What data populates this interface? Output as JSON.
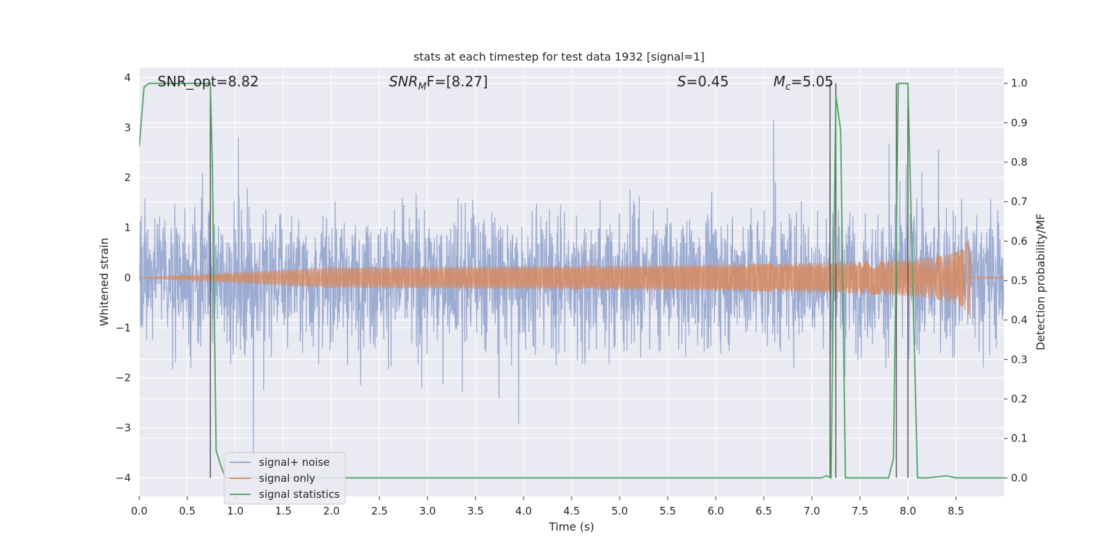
{
  "chart_data": {
    "type": "line",
    "title": "stats at each timestep for test data 1932 [signal=1]",
    "xlabel": "Time (s)",
    "ylabel_left": "Whitened strain",
    "ylabel_right": "Detection probability/MF",
    "xlim": [
      0,
      9.0
    ],
    "ylim_left": [
      -4.37,
      4.2
    ],
    "ylim_right": [
      -0.047,
      1.04
    ],
    "x_ticks": [
      "0.0",
      "0.5",
      "1.0",
      "1.5",
      "2.0",
      "2.5",
      "3.0",
      "3.5",
      "4.0",
      "4.5",
      "5.0",
      "5.5",
      "6.0",
      "6.5",
      "7.0",
      "7.5",
      "8.0",
      "8.5"
    ],
    "y_left_ticks": [
      "4",
      "3",
      "2",
      "1",
      "0",
      "−1",
      "−2",
      "−3",
      "−4"
    ],
    "y_right_ticks": [
      "1.0",
      "0.9",
      "0.8",
      "0.7",
      "0.6",
      "0.5",
      "0.4",
      "0.3",
      "0.2",
      "0.1",
      "0.0"
    ],
    "grid": true,
    "legend_position": "bottom-left",
    "annotations": [
      {
        "text": "SNR_opt=8.82",
        "x": 0.19
      },
      {
        "text": "SNR",
        "sub": "M",
        "after": "F=[8.27]",
        "italic": true,
        "x": 2.6
      },
      {
        "text": "S",
        "after": "=0.45",
        "italic": true,
        "x": 5.6
      },
      {
        "text": "M",
        "sub": "c",
        "after": "=5.05",
        "italic": true,
        "x": 6.6
      }
    ],
    "series": [
      {
        "name": "signal+ noise",
        "color": "#8da0cb",
        "description_envelope": "dense whitened noise, typical amplitude about ±1.5 with spikes to ±3.8"
      },
      {
        "name": "signal only",
        "color": "#dd8452",
        "chirp_end": 8.65,
        "chirp_peak_amplitude": 0.9
      },
      {
        "name": "signal statistics",
        "color": "#55a868",
        "x": [
          0.0,
          0.05,
          0.1,
          0.2,
          0.3,
          0.4,
          0.5,
          0.6,
          0.7,
          0.74,
          0.76,
          0.8,
          0.85,
          0.9,
          1.0,
          1.5,
          2.0,
          3.0,
          4.0,
          5.0,
          6.0,
          6.5,
          7.0,
          7.1,
          7.15,
          7.2,
          7.25,
          7.3,
          7.35,
          7.4,
          7.5,
          7.6,
          7.7,
          7.8,
          7.85,
          7.9,
          7.95,
          8.0,
          8.05,
          8.1,
          8.15,
          8.2,
          8.4,
          8.5,
          9.0
        ],
        "values": [
          0.84,
          0.99,
          1.0,
          1.0,
          1.0,
          1.0,
          1.0,
          1.0,
          1.0,
          1.0,
          0.8,
          0.07,
          0.03,
          0.0,
          0.0,
          0.0,
          0.0,
          0.0,
          0.0,
          0.0,
          0.0,
          0.0,
          0.0,
          0.0,
          0.005,
          0.0,
          0.97,
          0.88,
          0.0,
          0.0,
          0.0,
          0.0,
          0.0,
          0.0,
          0.05,
          1.0,
          1.0,
          1.0,
          0.5,
          0.0,
          0.0,
          0.0,
          0.005,
          0.0,
          0.0
        ]
      }
    ],
    "vertical_lines": [
      {
        "x": 0.74,
        "color": "#555555"
      },
      {
        "x": 7.19,
        "color": "#555555"
      },
      {
        "x": 7.25,
        "color": "#555555"
      },
      {
        "x": 7.88,
        "color": "#555555"
      },
      {
        "x": 8.0,
        "color": "#555555"
      }
    ],
    "colors": {
      "background": "#eaeaf2",
      "grid": "#ffffff"
    }
  }
}
